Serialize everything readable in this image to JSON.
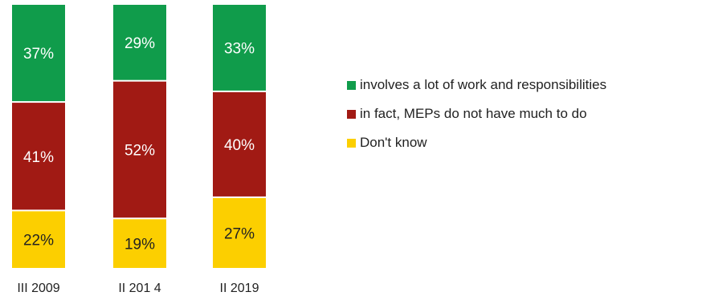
{
  "chart_data": {
    "type": "bar",
    "stacked": true,
    "categories": [
      "III 2009",
      "II 201 4",
      "II 2019"
    ],
    "series": [
      {
        "name": "involves a lot of work and responsibilities",
        "values": [
          37,
          29,
          33
        ],
        "labels": [
          "37%",
          "29%",
          "33%"
        ],
        "color": "#109c4b"
      },
      {
        "name": "in fact, MEPs do not have much to do",
        "values": [
          41,
          52,
          40
        ],
        "labels": [
          "41%",
          "52%",
          "40%"
        ],
        "color": "#a11a14"
      },
      {
        "name": "Don't know",
        "values": [
          22,
          19,
          27
        ],
        "labels": [
          "22%",
          "19%",
          "27%"
        ],
        "color": "#fccf00"
      }
    ],
    "ylim": [
      0,
      100
    ],
    "legend_position": "right",
    "grid": false,
    "title": "",
    "xlabel": "",
    "ylabel": ""
  }
}
